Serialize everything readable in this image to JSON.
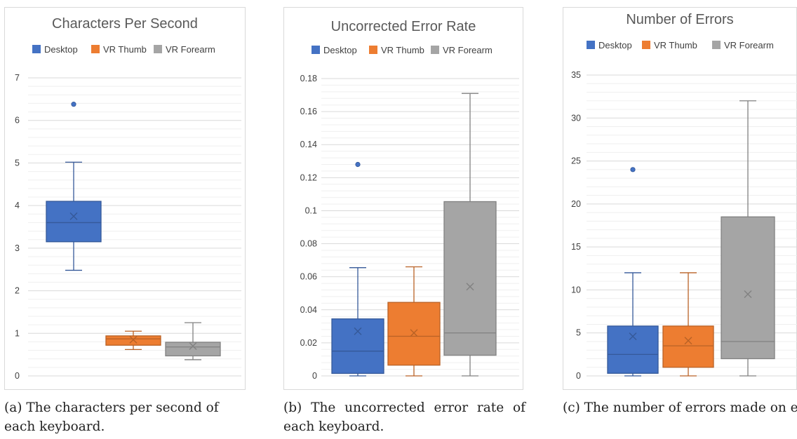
{
  "figures": [
    {
      "caption": "(a) The characters per second of each keyboard."
    },
    {
      "caption": "(b) The uncorrected error rate of each keyboard."
    },
    {
      "caption": "(c) The number of errors made on each keyboard."
    }
  ],
  "chart_data": [
    {
      "type": "box",
      "title": "Characters Per Second",
      "xlabel": "",
      "ylabel": "",
      "ylim": [
        0,
        7
      ],
      "yticks": [
        "0",
        "1",
        "2",
        "3",
        "4",
        "5",
        "6",
        "7"
      ],
      "ytick_values": [
        0,
        1,
        2,
        3,
        4,
        5,
        6,
        7
      ],
      "grid": true,
      "legend": "top",
      "series": [
        {
          "name": "Desktop",
          "color": "#4472C4",
          "min": 2.48,
          "q1": 3.15,
          "median": 3.6,
          "q3": 4.1,
          "max": 5.02,
          "mean": 3.75,
          "outliers": [
            6.38
          ]
        },
        {
          "name": "VR Thumb",
          "color": "#ED7D31",
          "min": 0.62,
          "q1": 0.72,
          "median": 0.87,
          "q3": 0.94,
          "max": 1.05,
          "mean": 0.85,
          "outliers": []
        },
        {
          "name": "VR Forearm",
          "color": "#A5A5A5",
          "min": 0.38,
          "q1": 0.47,
          "median": 0.68,
          "q3": 0.79,
          "max": 1.25,
          "mean": 0.7,
          "outliers": []
        }
      ]
    },
    {
      "type": "box",
      "title": "Uncorrected Error Rate",
      "xlabel": "",
      "ylabel": "",
      "ylim": [
        0,
        0.18
      ],
      "yticks": [
        "0",
        "0.02",
        "0.04",
        "0.06",
        "0.08",
        "0.1",
        "0.12",
        "0.14",
        "0.16",
        "0.18"
      ],
      "ytick_values": [
        0,
        0.02,
        0.04,
        0.06,
        0.08,
        0.1,
        0.12,
        0.14,
        0.16,
        0.18
      ],
      "grid": true,
      "legend": "top",
      "series": [
        {
          "name": "Desktop",
          "color": "#4472C4",
          "min": 0,
          "q1": 0.0015,
          "median": 0.015,
          "q3": 0.0345,
          "max": 0.0655,
          "mean": 0.027,
          "outliers": [
            0.128
          ]
        },
        {
          "name": "VR Thumb",
          "color": "#ED7D31",
          "min": 0,
          "q1": 0.0065,
          "median": 0.024,
          "q3": 0.0445,
          "max": 0.066,
          "mean": 0.026,
          "outliers": []
        },
        {
          "name": "VR Forearm",
          "color": "#A5A5A5",
          "min": 0,
          "q1": 0.0125,
          "median": 0.026,
          "q3": 0.1055,
          "max": 0.171,
          "mean": 0.054,
          "outliers": []
        }
      ]
    },
    {
      "type": "box",
      "title": "Number of Errors",
      "xlabel": "",
      "ylabel": "",
      "ylim": [
        0,
        35
      ],
      "yticks": [
        "0",
        "5",
        "10",
        "15",
        "20",
        "25",
        "30",
        "35"
      ],
      "ytick_values": [
        0,
        5,
        10,
        15,
        20,
        25,
        30,
        35
      ],
      "grid": true,
      "legend": "top",
      "series": [
        {
          "name": "Desktop",
          "color": "#4472C4",
          "min": 0,
          "q1": 0.3,
          "median": 2.5,
          "q3": 5.8,
          "max": 12,
          "mean": 4.6,
          "outliers": [
            24
          ]
        },
        {
          "name": "VR Thumb",
          "color": "#ED7D31",
          "min": 0,
          "q1": 1,
          "median": 3.5,
          "q3": 5.8,
          "max": 12,
          "mean": 4.1,
          "outliers": []
        },
        {
          "name": "VR Forearm",
          "color": "#A5A5A5",
          "min": 0,
          "q1": 2,
          "median": 4,
          "q3": 18.5,
          "max": 32,
          "mean": 9.5,
          "outliers": []
        }
      ]
    }
  ]
}
